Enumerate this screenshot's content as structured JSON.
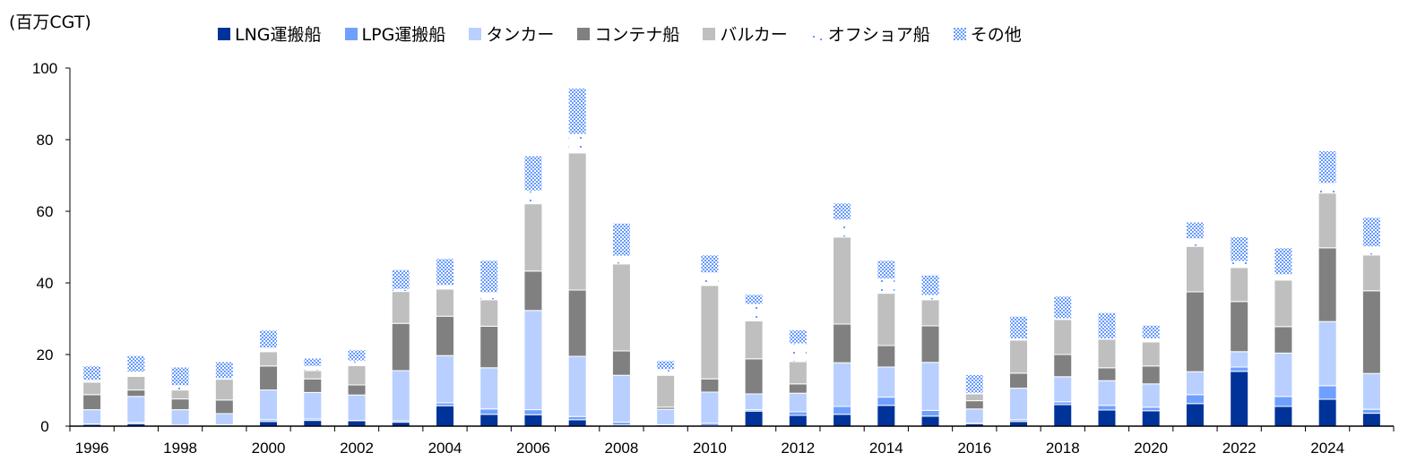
{
  "chart_data": {
    "type": "bar",
    "stacked": true,
    "unit_label": "(百万CGT)",
    "xlabel": "",
    "ylabel": "",
    "ylim": [
      0,
      100
    ],
    "yticks": [
      0,
      20,
      40,
      60,
      80,
      100
    ],
    "grid": false,
    "legend_position": "top",
    "categories": [
      "1996",
      "1997",
      "1998",
      "1999",
      "2000",
      "2001",
      "2002",
      "2003",
      "2004",
      "2005",
      "2006",
      "2007",
      "2008",
      "2009",
      "2010",
      "2011",
      "2012",
      "2013",
      "2014",
      "2015",
      "2016",
      "2017",
      "2018",
      "2019",
      "2020",
      "2021",
      "2022",
      "2023",
      "2024",
      "2025"
    ],
    "x_tick_labels": [
      "1996",
      "1998",
      "2000",
      "2002",
      "2004",
      "2006",
      "2008",
      "2010",
      "2012",
      "2014",
      "2016",
      "2018",
      "2020",
      "2022",
      "2024"
    ],
    "series": [
      {
        "name": "LNG運搬船",
        "color": "#003399",
        "pattern": "solid",
        "values": [
          0.5,
          0.7,
          0,
          0.3,
          1.3,
          1.6,
          1.5,
          1.1,
          5.7,
          3.3,
          3.2,
          1.8,
          0.3,
          0,
          0.1,
          4.2,
          3.0,
          3.3,
          5.8,
          2.8,
          0.7,
          1.3,
          6.0,
          4.5,
          4.3,
          6.3,
          15.3,
          5.5,
          7.5,
          3.6
        ]
      },
      {
        "name": "LPG運搬船",
        "color": "#6FA0FF",
        "pattern": "solid",
        "values": [
          0.1,
          0.3,
          0.3,
          0.1,
          0.5,
          0.4,
          0.1,
          0.4,
          0.8,
          1.5,
          1.4,
          0.9,
          0.8,
          0.4,
          0.7,
          0.4,
          1.0,
          2.2,
          2.3,
          1.6,
          0.1,
          0.5,
          0.8,
          1.3,
          1.0,
          2.5,
          1.2,
          2.8,
          3.8,
          1.1
        ]
      },
      {
        "name": "タンカー",
        "color": "#B8CFFF",
        "pattern": "solid",
        "values": [
          4.0,
          7.3,
          4.3,
          3.1,
          8.3,
          7.4,
          7.1,
          14.0,
          13.2,
          11.5,
          27.7,
          16.8,
          13.1,
          4.3,
          8.7,
          4.4,
          5.2,
          12.2,
          8.4,
          13.4,
          4.0,
          8.8,
          7.0,
          6.9,
          6.5,
          6.4,
          4.3,
          12.1,
          17.9,
          10.0
        ]
      },
      {
        "name": "コンテナ船",
        "color": "#808080",
        "pattern": "solid",
        "values": [
          4.2,
          1.8,
          3.0,
          3.8,
          6.7,
          3.8,
          2.8,
          13.2,
          11.0,
          11.6,
          11.0,
          18.5,
          6.8,
          0.6,
          3.7,
          9.8,
          2.6,
          10.8,
          6.0,
          10.2,
          2.3,
          4.2,
          6.2,
          3.6,
          5.0,
          22.3,
          14.0,
          7.4,
          20.6,
          23.1
        ]
      },
      {
        "name": "バルカー",
        "color": "#BFBFBF",
        "pattern": "solid",
        "values": [
          3.5,
          3.8,
          2.5,
          5.8,
          4.0,
          2.3,
          5.4,
          8.9,
          7.6,
          7.4,
          18.8,
          38.3,
          24.3,
          8.9,
          26.1,
          10.6,
          6.2,
          24.3,
          14.6,
          7.3,
          1.9,
          9.2,
          9.8,
          8.0,
          6.7,
          12.7,
          9.5,
          13.0,
          15.3,
          10.0
        ]
      },
      {
        "name": "オフショア船",
        "color": "#6699FF",
        "pattern": "sparse-dots",
        "values": [
          0.5,
          1.2,
          1.2,
          0.2,
          1.0,
          1.2,
          1.3,
          0.6,
          1.0,
          2.0,
          3.6,
          5.2,
          2.2,
          1.6,
          3.5,
          4.6,
          5.0,
          4.8,
          4.0,
          1.2,
          0.2,
          0.4,
          0.2,
          0.1,
          0.9,
          2.1,
          1.7,
          1.5,
          2.7,
          2.3
        ]
      },
      {
        "name": "その他",
        "color": "#6699FF",
        "pattern": "checker",
        "values": [
          4.0,
          4.6,
          5.2,
          4.7,
          5.0,
          2.3,
          3.1,
          5.5,
          7.5,
          9.0,
          9.8,
          12.9,
          9.2,
          2.5,
          5.0,
          2.8,
          3.9,
          4.7,
          5.2,
          5.7,
          5.2,
          6.3,
          6.3,
          7.3,
          3.8,
          4.7,
          6.9,
          7.5,
          9.1,
          8.2
        ]
      }
    ]
  }
}
